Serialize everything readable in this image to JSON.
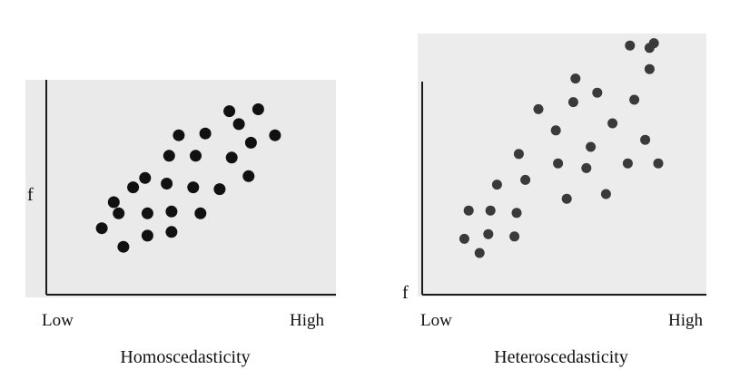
{
  "chart_data": [
    {
      "type": "scatter",
      "title": "",
      "caption": "Homoscedasticity",
      "xlabel": "",
      "ylabel": "f",
      "x_tick_labels": [
        "Low",
        "High"
      ],
      "xlim": [
        0,
        10
      ],
      "ylim": [
        0,
        10
      ],
      "grid": false,
      "colors": {
        "background": "#eaeaea",
        "axis": "#1a1a1a",
        "point": "#111111"
      },
      "series": [
        {
          "points": [
            {
              "x": 1.4,
              "y": 2.6
            },
            {
              "x": 2.3,
              "y": 1.6
            },
            {
              "x": 2.1,
              "y": 3.4
            },
            {
              "x": 1.9,
              "y": 4.0
            },
            {
              "x": 2.7,
              "y": 4.8
            },
            {
              "x": 3.3,
              "y": 3.4
            },
            {
              "x": 3.3,
              "y": 2.2
            },
            {
              "x": 3.2,
              "y": 5.3
            },
            {
              "x": 4.3,
              "y": 3.5
            },
            {
              "x": 4.3,
              "y": 2.4
            },
            {
              "x": 4.1,
              "y": 5.0
            },
            {
              "x": 4.2,
              "y": 6.5
            },
            {
              "x": 4.6,
              "y": 7.6
            },
            {
              "x": 5.2,
              "y": 4.8
            },
            {
              "x": 5.3,
              "y": 6.5
            },
            {
              "x": 5.5,
              "y": 3.4
            },
            {
              "x": 5.7,
              "y": 7.7
            },
            {
              "x": 6.3,
              "y": 4.7
            },
            {
              "x": 6.8,
              "y": 6.4
            },
            {
              "x": 6.7,
              "y": 8.9
            },
            {
              "x": 7.1,
              "y": 8.2
            },
            {
              "x": 7.6,
              "y": 7.2
            },
            {
              "x": 7.5,
              "y": 5.4
            },
            {
              "x": 7.9,
              "y": 9.0
            },
            {
              "x": 8.6,
              "y": 7.6
            }
          ]
        }
      ]
    },
    {
      "type": "scatter",
      "title": "",
      "caption": "Heteroscedasticity",
      "xlabel": "",
      "ylabel": "f",
      "x_tick_labels": [
        "Low",
        "High"
      ],
      "xlim": [
        0,
        10
      ],
      "ylim": [
        0,
        10
      ],
      "grid": false,
      "colors": {
        "background": "#ececec",
        "axis": "#1a1a1a",
        "point": "#3a3a3a"
      },
      "series": [
        {
          "points": [
            {
              "x": 1.1,
              "y": 1.6
            },
            {
              "x": 1.8,
              "y": 1.0
            },
            {
              "x": 2.2,
              "y": 1.8
            },
            {
              "x": 1.3,
              "y": 2.8
            },
            {
              "x": 2.3,
              "y": 2.8
            },
            {
              "x": 2.6,
              "y": 3.9
            },
            {
              "x": 3.4,
              "y": 1.7
            },
            {
              "x": 3.5,
              "y": 2.7
            },
            {
              "x": 3.6,
              "y": 5.2
            },
            {
              "x": 3.9,
              "y": 4.1
            },
            {
              "x": 4.5,
              "y": 7.1
            },
            {
              "x": 5.3,
              "y": 6.2
            },
            {
              "x": 5.4,
              "y": 4.8
            },
            {
              "x": 5.8,
              "y": 3.3
            },
            {
              "x": 6.1,
              "y": 7.4
            },
            {
              "x": 6.2,
              "y": 8.4
            },
            {
              "x": 6.7,
              "y": 4.6
            },
            {
              "x": 6.9,
              "y": 5.5
            },
            {
              "x": 7.2,
              "y": 7.8
            },
            {
              "x": 7.6,
              "y": 3.5
            },
            {
              "x": 7.9,
              "y": 6.5
            },
            {
              "x": 8.6,
              "y": 4.8
            },
            {
              "x": 8.9,
              "y": 7.5
            },
            {
              "x": 9.4,
              "y": 5.8
            },
            {
              "x": 9.6,
              "y": 8.8
            },
            {
              "x": 9.6,
              "y": 9.7
            },
            {
              "x": 10.0,
              "y": 4.8
            },
            {
              "x": 8.7,
              "y": 9.8
            },
            {
              "x": 9.8,
              "y": 9.9
            }
          ]
        }
      ]
    }
  ]
}
